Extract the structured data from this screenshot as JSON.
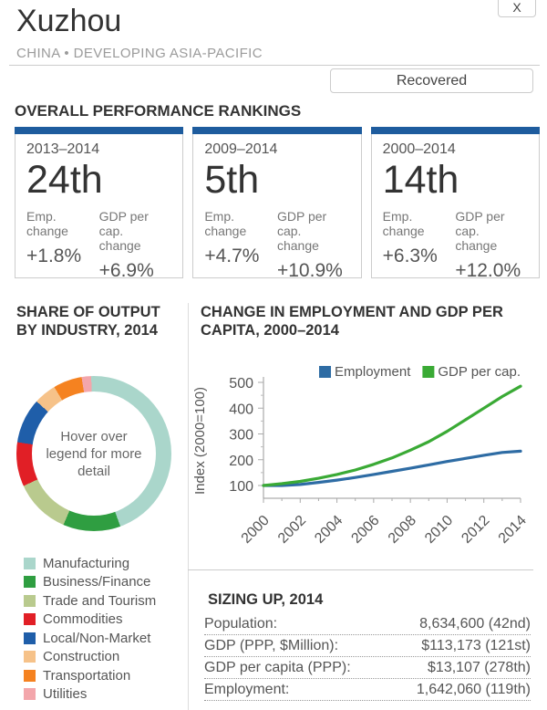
{
  "header": {
    "close_label": "X",
    "title": "Xuzhou",
    "subtitle": "CHINA • DEVELOPING ASIA-PACIFIC",
    "status_button_label": "Recovered"
  },
  "rankings": {
    "heading": "OVERALL PERFORMANCE RANKINGS",
    "emp_label": "Emp. change",
    "gdp_label": "GDP per cap. change",
    "accent_color": "#1e5c9e",
    "cards": [
      {
        "period": "2013–2014",
        "rank": "24th",
        "emp_change": "+1.8%",
        "gdp_change": "+6.9%"
      },
      {
        "period": "2009–2014",
        "rank": "5th",
        "emp_change": "+4.7%",
        "gdp_change": "+10.9%"
      },
      {
        "period": "2000–2014",
        "rank": "14th",
        "emp_change": "+6.3%",
        "gdp_change": "+12.0%"
      }
    ]
  },
  "sizing": {
    "heading": "SIZING UP, 2014",
    "rows": [
      {
        "label": "Population:",
        "value": "8,634,600 (42nd)"
      },
      {
        "label": "GDP (PPP, $Million):",
        "value": "$113,173 (121st)"
      },
      {
        "label": "GDP per capita (PPP):",
        "value": "$13,107 (278th)"
      },
      {
        "label": "Employment:",
        "value": "1,642,060 (119th)"
      }
    ]
  },
  "chart_data": [
    {
      "type": "pie",
      "donut": true,
      "title": "SHARE OF OUTPUT BY INDUSTRY, 2014",
      "center_text": "Hover over legend for more detail",
      "start_angle_deg": -2,
      "legend_position": "bottom",
      "slices": [
        {
          "label": "Manufacturing",
          "pct": 45.0,
          "color": "#aad6cb"
        },
        {
          "label": "Business/Finance",
          "pct": 12.0,
          "color": "#2f9e41"
        },
        {
          "label": "Trade and Tourism",
          "pct": 11.7,
          "color": "#b9ca8e"
        },
        {
          "label": "Commodities",
          "pct": 9.2,
          "color": "#e11f26"
        },
        {
          "label": "Local/Non-Market",
          "pct": 9.4,
          "color": "#1f5ea9"
        },
        {
          "label": "Construction",
          "pct": 4.7,
          "color": "#f6c289"
        },
        {
          "label": "Transportation",
          "pct": 6.0,
          "color": "#f58220"
        },
        {
          "label": "Utilities",
          "pct": 2.0,
          "color": "#f3a6ab"
        }
      ]
    },
    {
      "type": "line",
      "title": "CHANGE IN EMPLOYMENT AND GDP PER CAPITA, 2000–2014",
      "ylabel": "Index (2000=100)",
      "x": [
        2000,
        2001,
        2002,
        2003,
        2004,
        2005,
        2006,
        2007,
        2008,
        2009,
        2010,
        2011,
        2012,
        2013,
        2014
      ],
      "xticks": [
        2000,
        2002,
        2004,
        2006,
        2008,
        2010,
        2012,
        2014
      ],
      "yticks": [
        100,
        200,
        300,
        400,
        500
      ],
      "yticks_minor": [
        150,
        250,
        350,
        450
      ],
      "ylim": [
        40,
        510
      ],
      "grid": false,
      "legend_position": "top",
      "series": [
        {
          "name": "Employment",
          "color": "#2e6ca4",
          "values": [
            100,
            100,
            104,
            112,
            121,
            131,
            143,
            155,
            167,
            180,
            193,
            205,
            217,
            228,
            233
          ]
        },
        {
          "name": "GDP per cap.",
          "color": "#3aaa35",
          "values": [
            100,
            107,
            116,
            128,
            143,
            160,
            182,
            207,
            237,
            270,
            310,
            355,
            400,
            445,
            485
          ]
        }
      ]
    }
  ]
}
